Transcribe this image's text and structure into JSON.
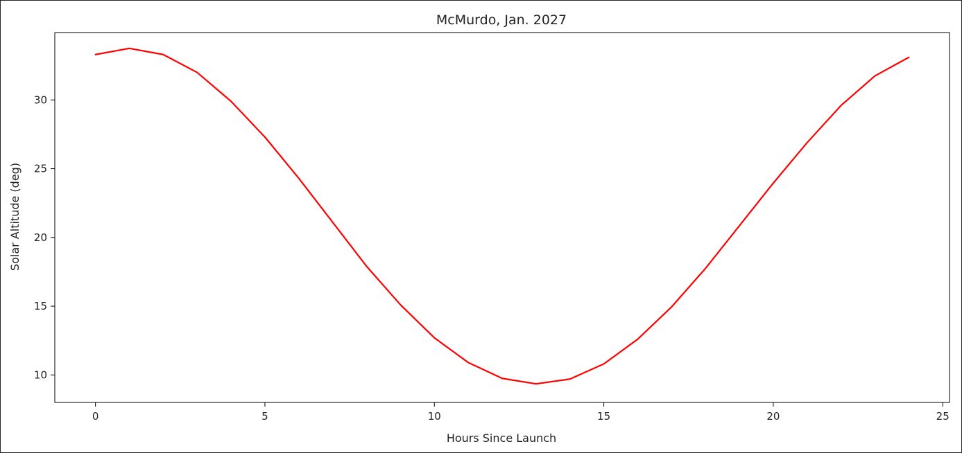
{
  "chart_data": {
    "type": "line",
    "title": "McMurdo, Jan. 2027",
    "xlabel": "Hours Since Launch",
    "ylabel": "Solar Altitude (deg)",
    "xlim": [
      -1.2,
      25.2
    ],
    "ylim": [
      8.0,
      34.9
    ],
    "xticks": [
      0,
      5,
      10,
      15,
      20,
      25
    ],
    "yticks": [
      10,
      15,
      20,
      25,
      30
    ],
    "xtick_labels": [
      "0",
      "5",
      "10",
      "15",
      "20",
      "25"
    ],
    "ytick_labels": [
      "10",
      "15",
      "20",
      "25",
      "30"
    ],
    "grid": false,
    "legend": "none",
    "series": [
      {
        "color": "#ff0000",
        "x": [
          0,
          1,
          2,
          3,
          4,
          5,
          6,
          7,
          8,
          9,
          10,
          11,
          12,
          13,
          14,
          15,
          16,
          17,
          18,
          19,
          20,
          21,
          22,
          23,
          24
        ],
        "y": [
          33.3,
          33.75,
          33.3,
          32.0,
          29.9,
          27.3,
          24.3,
          21.1,
          17.9,
          15.1,
          12.7,
          10.9,
          9.75,
          9.35,
          9.7,
          10.8,
          12.6,
          14.95,
          17.75,
          20.85,
          23.95,
          26.9,
          29.6,
          31.75,
          33.1
        ]
      }
    ]
  }
}
